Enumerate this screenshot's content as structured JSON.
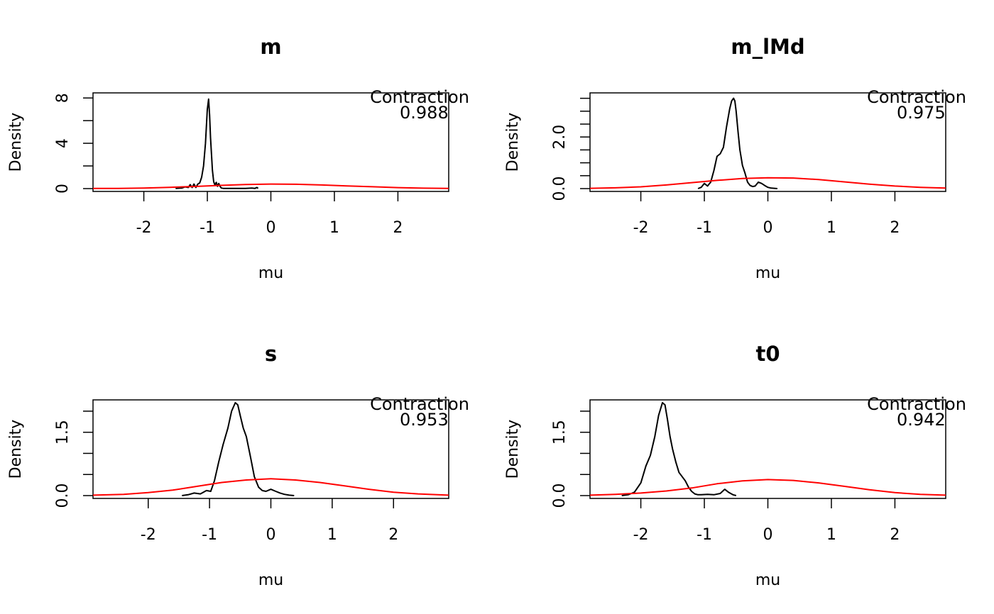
{
  "chart_data": [
    {
      "type": "line",
      "title": "m",
      "xlabel": "mu",
      "ylabel": "Density",
      "xlim": [
        -2.8,
        2.8
      ],
      "ylim": [
        0,
        8.2
      ],
      "xticks": [
        -2,
        -1,
        0,
        1,
        2
      ],
      "yticks_labeled": [
        0,
        4,
        8
      ],
      "yticks_minor": [
        2,
        6
      ],
      "annotation": [
        "Contraction",
        "0.988"
      ],
      "series": [
        {
          "color": "#000000",
          "x": [
            -1.5,
            -1.4,
            -1.35,
            -1.3,
            -1.27,
            -1.24,
            -1.21,
            -1.18,
            -1.15,
            -1.12,
            -1.09,
            -1.06,
            -1.03,
            -1.0,
            -0.98,
            -0.965,
            -0.95,
            -0.935,
            -0.92,
            -0.9,
            -0.88,
            -0.86,
            -0.84,
            -0.82,
            -0.8,
            -0.78,
            -0.75,
            -0.7,
            -0.6,
            -0.5,
            -0.4,
            -0.3,
            -0.25,
            -0.22,
            -0.2
          ],
          "y": [
            0.02,
            0.05,
            0.15,
            0.1,
            0.35,
            0.1,
            0.4,
            0.1,
            0.4,
            0.5,
            1.0,
            2.0,
            4.0,
            7.0,
            7.9,
            6.5,
            4.5,
            3.0,
            1.6,
            0.6,
            0.3,
            0.55,
            0.2,
            0.45,
            0.2,
            0.05,
            0.02,
            0.01,
            0.01,
            0.01,
            0.02,
            0.05,
            0.02,
            0.1,
            0.02
          ]
        },
        {
          "color": "#ff0000",
          "x": [
            -2.8,
            -2.4,
            -2.0,
            -1.6,
            -1.2,
            -0.8,
            -0.4,
            0.0,
            0.4,
            0.8,
            1.2,
            1.6,
            2.0,
            2.4,
            2.8
          ],
          "y": [
            0.01,
            0.02,
            0.05,
            0.11,
            0.19,
            0.28,
            0.36,
            0.4,
            0.38,
            0.32,
            0.24,
            0.16,
            0.09,
            0.04,
            0.02
          ]
        }
      ]
    },
    {
      "type": "line",
      "title": "m_lMd",
      "xlabel": "mu",
      "ylabel": "Density",
      "xlim": [
        -2.8,
        2.8
      ],
      "ylim": [
        0,
        3.6
      ],
      "xticks": [
        -2,
        -1,
        0,
        1,
        2
      ],
      "yticks_labeled": [
        0.0,
        2.0
      ],
      "yticks_minor": [
        0.5,
        1.0,
        1.5,
        2.5,
        3.0,
        3.5
      ],
      "annotation": [
        "Contraction",
        "0.975"
      ],
      "series": [
        {
          "color": "#000000",
          "x": [
            -1.1,
            -1.05,
            -1.0,
            -0.95,
            -0.9,
            -0.85,
            -0.8,
            -0.75,
            -0.7,
            -0.65,
            -0.6,
            -0.57,
            -0.54,
            -0.52,
            -0.5,
            -0.47,
            -0.44,
            -0.4,
            -0.36,
            -0.32,
            -0.28,
            -0.24,
            -0.2,
            -0.15,
            -0.1,
            -0.05,
            0.0,
            0.05,
            0.1,
            0.15
          ],
          "y": [
            0.0,
            0.05,
            0.2,
            0.1,
            0.25,
            0.7,
            1.25,
            1.35,
            1.6,
            2.4,
            3.1,
            3.4,
            3.5,
            3.4,
            3.0,
            2.2,
            1.5,
            0.9,
            0.6,
            0.25,
            0.12,
            0.08,
            0.1,
            0.25,
            0.2,
            0.12,
            0.05,
            0.02,
            0.01,
            0.0
          ]
        },
        {
          "color": "#ff0000",
          "x": [
            -2.8,
            -2.4,
            -2.0,
            -1.6,
            -1.2,
            -0.8,
            -0.4,
            0.0,
            0.4,
            0.8,
            1.2,
            1.6,
            2.0,
            2.4,
            2.8
          ],
          "y": [
            0.01,
            0.03,
            0.07,
            0.14,
            0.23,
            0.32,
            0.39,
            0.42,
            0.41,
            0.35,
            0.26,
            0.17,
            0.1,
            0.05,
            0.02
          ]
        }
      ]
    },
    {
      "type": "line",
      "title": "s",
      "xlabel": "mu",
      "ylabel": "Density",
      "xlim": [
        -2.9,
        2.9
      ],
      "ylim": [
        0,
        2.2
      ],
      "xticks": [
        -2,
        -1,
        0,
        1,
        2
      ],
      "yticks_labeled": [
        0.0,
        1.5
      ],
      "yticks_minor": [
        0.5,
        1.0,
        2.0
      ],
      "annotation": [
        "Contraction",
        "0.953"
      ],
      "series": [
        {
          "color": "#000000",
          "x": [
            -1.45,
            -1.35,
            -1.25,
            -1.15,
            -1.05,
            -0.98,
            -0.92,
            -0.85,
            -0.78,
            -0.7,
            -0.64,
            -0.58,
            -0.54,
            -0.5,
            -0.45,
            -0.4,
            -0.33,
            -0.27,
            -0.2,
            -0.14,
            -0.08,
            0.0,
            0.08,
            0.15,
            0.22,
            0.3,
            0.38
          ],
          "y": [
            0.0,
            0.02,
            0.06,
            0.04,
            0.12,
            0.1,
            0.35,
            0.8,
            1.2,
            1.6,
            2.0,
            2.2,
            2.15,
            1.9,
            1.6,
            1.4,
            0.9,
            0.45,
            0.2,
            0.12,
            0.1,
            0.15,
            0.1,
            0.06,
            0.03,
            0.01,
            0.0
          ]
        },
        {
          "color": "#ff0000",
          "x": [
            -2.9,
            -2.4,
            -2.0,
            -1.6,
            -1.2,
            -0.8,
            -0.4,
            0.0,
            0.4,
            0.8,
            1.2,
            1.6,
            2.0,
            2.4,
            2.9
          ],
          "y": [
            0.01,
            0.03,
            0.07,
            0.13,
            0.22,
            0.31,
            0.37,
            0.4,
            0.37,
            0.31,
            0.23,
            0.15,
            0.08,
            0.04,
            0.01
          ]
        }
      ]
    },
    {
      "type": "line",
      "title": "t0",
      "xlabel": "mu",
      "ylabel": "Density",
      "xlim": [
        -2.8,
        2.8
      ],
      "ylim": [
        0,
        2.2
      ],
      "xticks": [
        -2,
        -1,
        0,
        1,
        2
      ],
      "yticks_labeled": [
        0.0,
        1.5
      ],
      "yticks_minor": [
        0.5,
        1.0,
        2.0
      ],
      "annotation": [
        "Contraction",
        "0.942"
      ],
      "series": [
        {
          "color": "#000000",
          "x": [
            -2.3,
            -2.2,
            -2.1,
            -2.0,
            -1.92,
            -1.85,
            -1.78,
            -1.72,
            -1.66,
            -1.62,
            -1.58,
            -1.54,
            -1.5,
            -1.45,
            -1.4,
            -1.35,
            -1.3,
            -1.25,
            -1.2,
            -1.15,
            -1.1,
            -1.05,
            -0.95,
            -0.85,
            -0.75,
            -0.68,
            -0.62,
            -0.55,
            -0.5
          ],
          "y": [
            0.0,
            0.02,
            0.08,
            0.3,
            0.7,
            0.95,
            1.4,
            1.9,
            2.2,
            2.15,
            1.8,
            1.4,
            1.1,
            0.8,
            0.55,
            0.45,
            0.35,
            0.2,
            0.1,
            0.04,
            0.02,
            0.02,
            0.03,
            0.02,
            0.05,
            0.15,
            0.08,
            0.02,
            0.0
          ]
        },
        {
          "color": "#ff0000",
          "x": [
            -2.8,
            -2.4,
            -2.0,
            -1.6,
            -1.2,
            -0.8,
            -0.4,
            0.0,
            0.4,
            0.8,
            1.2,
            1.6,
            2.0,
            2.4,
            2.8
          ],
          "y": [
            0.01,
            0.03,
            0.06,
            0.11,
            0.18,
            0.28,
            0.35,
            0.38,
            0.36,
            0.3,
            0.22,
            0.14,
            0.07,
            0.03,
            0.01
          ]
        }
      ]
    }
  ]
}
